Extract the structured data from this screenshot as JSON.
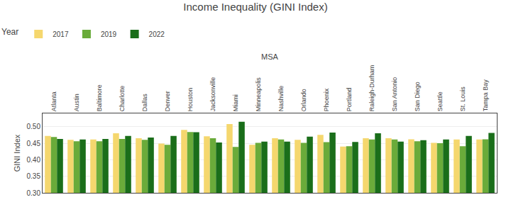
{
  "chart_data": {
    "type": "bar",
    "title": "Income Inequality (GINI Index)",
    "xlabel": "MSA",
    "ylabel": "GINI Index",
    "legend_title": "Year",
    "categories": [
      "Atlanta",
      "Austin",
      "Baltimore",
      "Charlotte",
      "Dallas",
      "Denver",
      "Houston",
      "Jacksonville",
      "Miami",
      "Minneapolis",
      "Nashville",
      "Orlando",
      "Phoenix",
      "Portland",
      "Raleigh-Durham",
      "San Antonio",
      "San Diego",
      "Seattle",
      "St. Louis",
      "Tampa Bay"
    ],
    "series": [
      {
        "name": "2017",
        "color": "#f5d76e",
        "values": [
          0.472,
          0.46,
          0.461,
          0.48,
          0.465,
          0.449,
          0.49,
          0.471,
          0.508,
          0.445,
          0.465,
          0.46,
          0.475,
          0.44,
          0.465,
          0.465,
          0.462,
          0.451,
          0.461,
          0.461
        ]
      },
      {
        "name": "2019",
        "color": "#6aab3a",
        "values": [
          0.469,
          0.456,
          0.456,
          0.463,
          0.46,
          0.445,
          0.484,
          0.465,
          0.439,
          0.451,
          0.461,
          0.451,
          0.453,
          0.441,
          0.461,
          0.461,
          0.456,
          0.45,
          0.441,
          0.462
        ]
      },
      {
        "name": "2022",
        "color": "#1a6e1a",
        "values": [
          0.463,
          0.461,
          0.463,
          0.472,
          0.467,
          0.472,
          0.483,
          0.452,
          0.515,
          0.455,
          0.455,
          0.47,
          0.482,
          0.454,
          0.48,
          0.455,
          0.459,
          0.461,
          0.472,
          0.481
        ]
      }
    ],
    "ylim": [
      0.3,
      0.54
    ],
    "yticks": [
      {
        "value": 0.3,
        "label": "0.30"
      },
      0.35,
      {
        "value": 0.4,
        "label": "0.40"
      },
      0.45,
      {
        "value": 0.5,
        "label": "0.50"
      }
    ],
    "grid": true,
    "legend": "upper left"
  }
}
